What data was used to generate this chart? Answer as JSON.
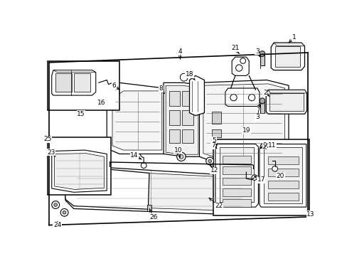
{
  "background_color": "#ffffff",
  "line_color": "#000000",
  "gray_color": "#888888",
  "light_gray": "#e8e8e8"
}
